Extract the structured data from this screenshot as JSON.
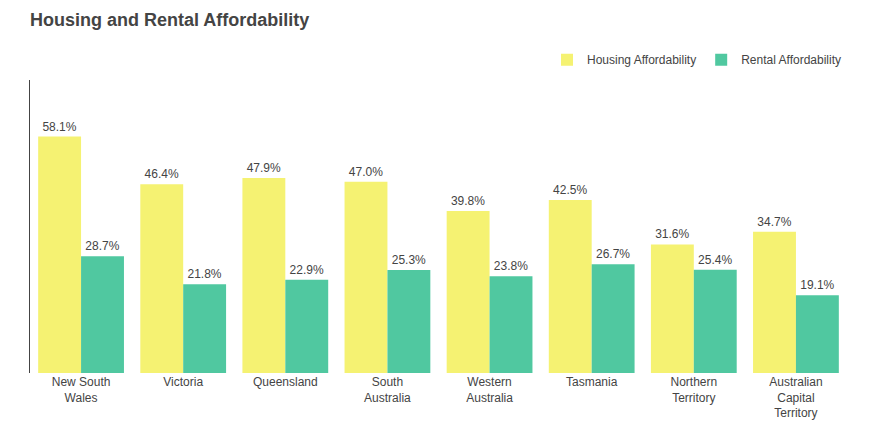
{
  "chart_data": {
    "type": "bar",
    "title": "Housing and Rental Affordability",
    "categories": [
      "New South\nWales",
      "Victoria",
      "Queensland",
      "South\nAustralia",
      "Western\nAustralia",
      "Tasmania",
      "Northern\nTerritory",
      "Australian\nCapital\nTerritory"
    ],
    "series": [
      {
        "name": "Housing Affordability",
        "color": "#f5f272",
        "values": [
          58.1,
          46.4,
          47.9,
          47.0,
          39.8,
          42.5,
          31.6,
          34.7
        ],
        "value_labels": [
          "58.1%",
          "46.4%",
          "47.9%",
          "47.0%",
          "39.8%",
          "42.5%",
          "31.6%",
          "34.7%"
        ]
      },
      {
        "name": "Rental Affordability",
        "color": "#50c8a0",
        "values": [
          28.7,
          21.8,
          22.9,
          25.3,
          23.8,
          26.7,
          25.4,
          19.1
        ],
        "value_labels": [
          "28.7%",
          "21.8%",
          "22.9%",
          "25.3%",
          "23.8%",
          "26.7%",
          "25.4%",
          "19.1%"
        ]
      }
    ],
    "ylim": [
      0,
      72
    ],
    "grid": false,
    "legend": "upper right",
    "data_labels": true,
    "tick_labels": "x"
  }
}
